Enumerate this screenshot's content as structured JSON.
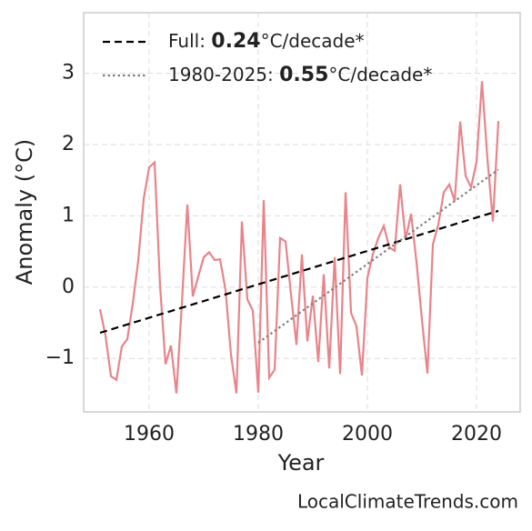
{
  "chart_data": {
    "type": "line",
    "xlabel": "Year",
    "ylabel": "Anomaly (°C)",
    "source": "LocalClimateTrends.com",
    "xlim": [
      1948,
      2028
    ],
    "ylim": [
      -1.75,
      3.85
    ],
    "xticks": [
      1960,
      1980,
      2000,
      2020
    ],
    "yticks": [
      {
        "value": -1,
        "label": "−1"
      },
      0,
      1,
      2,
      3
    ],
    "grid": true,
    "legend": "upper left",
    "series": [
      {
        "color": "#e8848a",
        "style": "solid",
        "x": [
          1951,
          1952,
          1953,
          1954,
          1955,
          1956,
          1957,
          1958,
          1959,
          1960,
          1961,
          1962,
          1963,
          1964,
          1965,
          1966,
          1967,
          1968,
          1969,
          1970,
          1971,
          1972,
          1973,
          1974,
          1975,
          1976,
          1977,
          1978,
          1979,
          1980,
          1981,
          1982,
          1983,
          1984,
          1985,
          1986,
          1987,
          1988,
          1989,
          1990,
          1991,
          1992,
          1993,
          1994,
          1995,
          1996,
          1997,
          1998,
          1999,
          2000,
          2001,
          2002,
          2003,
          2004,
          2005,
          2006,
          2007,
          2008,
          2009,
          2010,
          2011,
          2012,
          2013,
          2014,
          2015,
          2016,
          2017,
          2018,
          2019,
          2020,
          2021,
          2022,
          2023,
          2024
        ],
        "values": [
          -0.31,
          -0.68,
          -1.25,
          -1.3,
          -0.83,
          -0.73,
          -0.23,
          0.37,
          1.24,
          1.68,
          1.75,
          0.02,
          -1.08,
          -0.82,
          -1.49,
          -0.23,
          1.16,
          -0.13,
          0.15,
          0.42,
          0.49,
          0.38,
          0.39,
          -0.04,
          -0.95,
          -1.49,
          0.92,
          -0.17,
          -0.33,
          -1.48,
          1.22,
          -1.27,
          -1.16,
          0.69,
          0.64,
          -0.1,
          -0.81,
          0.46,
          -0.76,
          -0.12,
          -1.05,
          0.18,
          -1.14,
          0.42,
          -1.22,
          1.33,
          -0.36,
          -0.55,
          -1.24,
          0.13,
          0.46,
          0.69,
          0.86,
          0.56,
          0.51,
          1.44,
          0.67,
          1.03,
          0.35,
          -0.46,
          -1.21,
          0.6,
          0.88,
          1.33,
          1.44,
          1.21,
          2.32,
          1.56,
          1.4,
          1.76,
          2.89,
          1.8,
          0.92,
          2.33
        ]
      },
      {
        "name": [
          "Full: ",
          "0.24",
          "°C/decade*"
        ],
        "color": "#000000",
        "style": "dashed",
        "x": [
          1951,
          2024
        ],
        "values": [
          -0.64,
          1.07
        ]
      },
      {
        "name": [
          "1980-2025: ",
          "0.55",
          "°C/decade*"
        ],
        "color": "#808080",
        "style": "dotted",
        "x": [
          1980,
          2024
        ],
        "values": [
          -0.78,
          1.65
        ]
      }
    ]
  }
}
